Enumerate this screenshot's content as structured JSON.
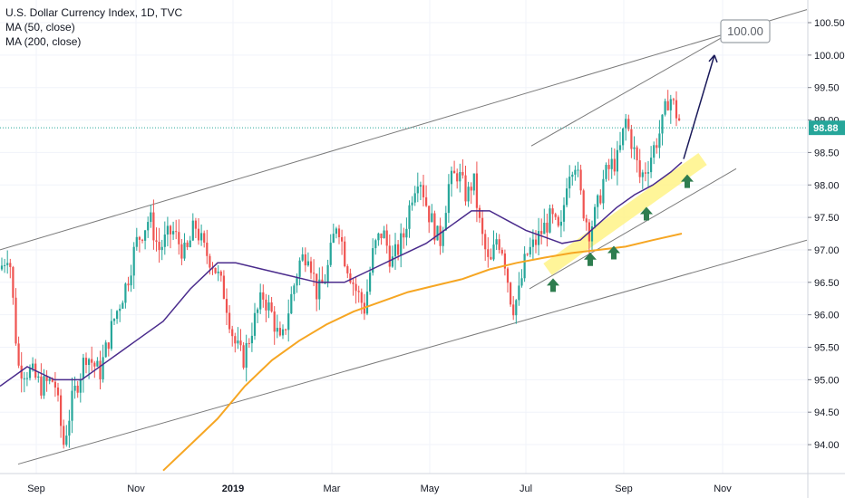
{
  "chart_data": {
    "type": "candlestick",
    "title": "U.S. Dollar Currency Index, 1D, TVC",
    "indicators": [
      "MA (50, close)",
      "MA (200, close)"
    ],
    "current_price": "98.88",
    "target_label": "100.00",
    "y_ticks": [
      "100.50",
      "100.00",
      "99.50",
      "99.00",
      "98.50",
      "98.00",
      "97.50",
      "97.00",
      "96.50",
      "96.00",
      "95.50",
      "95.00",
      "94.50",
      "94.00"
    ],
    "x_ticks": [
      "Sep",
      "Nov",
      "2019",
      "Mar",
      "May",
      "Jul",
      "Sep",
      "Nov"
    ],
    "ylim": [
      93.6,
      100.8
    ],
    "colors": {
      "up": "#26a69a",
      "down": "#ef5350",
      "ma50": "#4a2b8c",
      "ma200": "#f6a623",
      "channel": "#7b7b7b",
      "highlight": "#fff48f",
      "arrow_up": "#2e7d4f",
      "price_line": "#26a69a"
    },
    "price_series": [
      [
        0,
        96.7
      ],
      [
        10,
        97.0
      ],
      [
        20,
        95.2
      ],
      [
        35,
        95.1
      ],
      [
        45,
        94.9
      ],
      [
        60,
        95.0
      ],
      [
        70,
        94.0
      ],
      [
        80,
        94.7
      ],
      [
        95,
        95.4
      ],
      [
        110,
        95.1
      ],
      [
        125,
        95.9
      ],
      [
        140,
        96.5
      ],
      [
        150,
        97.1
      ],
      [
        165,
        97.5
      ],
      [
        175,
        97.0
      ],
      [
        190,
        97.3
      ],
      [
        205,
        96.9
      ],
      [
        215,
        97.4
      ],
      [
        225,
        97.0
      ],
      [
        235,
        96.8
      ],
      [
        248,
        96.3
      ],
      [
        258,
        95.6
      ],
      [
        268,
        95.3
      ],
      [
        278,
        95.8
      ],
      [
        290,
        96.3
      ],
      [
        300,
        96.0
      ],
      [
        310,
        95.5
      ],
      [
        320,
        96.2
      ],
      [
        330,
        96.8
      ],
      [
        340,
        97.0
      ],
      [
        350,
        96.3
      ],
      [
        360,
        96.6
      ],
      [
        372,
        97.5
      ],
      [
        380,
        96.9
      ],
      [
        392,
        96.4
      ],
      [
        402,
        96.1
      ],
      [
        412,
        97.0
      ],
      [
        422,
        97.3
      ],
      [
        432,
        96.8
      ],
      [
        445,
        97.2
      ],
      [
        455,
        97.9
      ],
      [
        462,
        98.2
      ],
      [
        472,
        97.6
      ],
      [
        485,
        97.1
      ],
      [
        495,
        98.0
      ],
      [
        505,
        98.2
      ],
      [
        515,
        97.8
      ],
      [
        522,
        98.1
      ],
      [
        530,
        97.3
      ],
      [
        540,
        96.7
      ],
      [
        548,
        97.2
      ],
      [
        555,
        97.0
      ],
      [
        565,
        96.1
      ],
      [
        572,
        96.3
      ],
      [
        580,
        96.9
      ],
      [
        590,
        97.1
      ],
      [
        598,
        97.3
      ],
      [
        608,
        97.5
      ],
      [
        618,
        97.2
      ],
      [
        626,
        98.2
      ],
      [
        634,
        98.4
      ],
      [
        642,
        97.7
      ],
      [
        650,
        97.3
      ],
      [
        658,
        97.6
      ],
      [
        666,
        98.1
      ],
      [
        674,
        98.3
      ],
      [
        682,
        98.4
      ],
      [
        690,
        99.0
      ],
      [
        698,
        98.6
      ],
      [
        706,
        98.1
      ],
      [
        714,
        98.3
      ],
      [
        722,
        98.6
      ],
      [
        730,
        98.9
      ],
      [
        738,
        99.4
      ],
      [
        746,
        99.1
      ],
      [
        752,
        98.9
      ]
    ],
    "ma50": [
      [
        0,
        94.9
      ],
      [
        30,
        95.2
      ],
      [
        60,
        95.0
      ],
      [
        90,
        95.0
      ],
      [
        120,
        95.3
      ],
      [
        150,
        95.6
      ],
      [
        180,
        95.9
      ],
      [
        210,
        96.4
      ],
      [
        240,
        96.8
      ],
      [
        260,
        96.8
      ],
      [
        290,
        96.7
      ],
      [
        320,
        96.6
      ],
      [
        350,
        96.5
      ],
      [
        380,
        96.5
      ],
      [
        410,
        96.7
      ],
      [
        440,
        96.9
      ],
      [
        470,
        97.1
      ],
      [
        500,
        97.4
      ],
      [
        520,
        97.6
      ],
      [
        540,
        97.6
      ],
      [
        560,
        97.45
      ],
      [
        580,
        97.3
      ],
      [
        600,
        97.2
      ],
      [
        620,
        97.1
      ],
      [
        640,
        97.15
      ],
      [
        660,
        97.4
      ],
      [
        680,
        97.65
      ],
      [
        700,
        97.85
      ],
      [
        720,
        98.0
      ],
      [
        740,
        98.2
      ],
      [
        752,
        98.35
      ]
    ],
    "ma200": [
      [
        180,
        93.6
      ],
      [
        210,
        94.0
      ],
      [
        240,
        94.4
      ],
      [
        270,
        94.9
      ],
      [
        300,
        95.3
      ],
      [
        330,
        95.6
      ],
      [
        360,
        95.85
      ],
      [
        390,
        96.05
      ],
      [
        420,
        96.2
      ],
      [
        450,
        96.35
      ],
      [
        480,
        96.45
      ],
      [
        510,
        96.55
      ],
      [
        540,
        96.7
      ],
      [
        570,
        96.8
      ],
      [
        600,
        96.88
      ],
      [
        630,
        96.95
      ],
      [
        660,
        97.0
      ],
      [
        690,
        97.05
      ],
      [
        720,
        97.15
      ],
      [
        752,
        97.25
      ]
    ],
    "channel_lines": [
      {
        "from": [
          0,
          97.0
        ],
        "to": [
          890,
          100.7
        ]
      },
      {
        "from": [
          20,
          93.7
        ],
        "to": [
          890,
          97.15
        ]
      },
      {
        "from": [
          586,
          98.6
        ],
        "to": [
          800,
          100.3
        ]
      },
      {
        "from": [
          584,
          96.4
        ],
        "to": [
          812,
          98.25
        ]
      }
    ],
    "highlight_band": {
      "from": [
        604,
        96.7
      ],
      "to": [
        775,
        98.4
      ]
    },
    "support_arrows": [
      [
        610,
        96.45
      ],
      [
        651,
        96.85
      ],
      [
        677,
        96.95
      ],
      [
        713,
        97.55
      ],
      [
        758,
        98.05
      ]
    ],
    "projection": {
      "from": [
        754,
        98.4
      ],
      "to": [
        788,
        100.0
      ]
    }
  }
}
